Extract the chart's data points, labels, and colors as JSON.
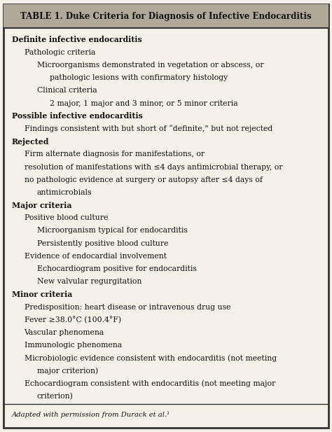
{
  "title": "TABLE 1. Duke Criteria for Diagnosis of Infective Endocarditis",
  "title_fontsize": 8.5,
  "bg_color": "#f5f0e8",
  "header_bg": "#b0a898",
  "border_color": "#333333",
  "footer_text": "Adapted with permission from Durack et al.¹",
  "lines": [
    {
      "text": "Definite infective endocarditis",
      "indent": 0
    },
    {
      "text": "Pathologic criteria",
      "indent": 1
    },
    {
      "text": "Microorganisms demonstrated in vegetation or abscess, or",
      "indent": 2
    },
    {
      "text": "pathologic lesions with confirmatory histology",
      "indent": 3
    },
    {
      "text": "Clinical criteria",
      "indent": 2
    },
    {
      "text": "2 major, 1 major and 3 minor, or 5 minor criteria",
      "indent": 3
    },
    {
      "text": "Possible infective endocarditis",
      "indent": 0
    },
    {
      "text": "Findings consistent with but short of “definite,” but not rejected",
      "indent": 1
    },
    {
      "text": "Rejected",
      "indent": 0
    },
    {
      "text": "Firm alternate diagnosis for manifestations, or",
      "indent": 1
    },
    {
      "text": "resolution of manifestations with ≤4 days antimicrobial therapy, or",
      "indent": 1
    },
    {
      "text": "no pathologic evidence at surgery or autopsy after ≤4 days of",
      "indent": 1
    },
    {
      "text": "antimicrobials",
      "indent": 2
    },
    {
      "text": "Major criteria",
      "indent": 0
    },
    {
      "text": "Positive blood culture",
      "indent": 1
    },
    {
      "text": "Microorganism typical for endocarditis",
      "indent": 2
    },
    {
      "text": "Persistently positive blood culture",
      "indent": 2
    },
    {
      "text": "Evidence of endocardial involvement",
      "indent": 1
    },
    {
      "text": "Echocardiogram positive for endocarditis",
      "indent": 2
    },
    {
      "text": "New valvular regurgitation",
      "indent": 2
    },
    {
      "text": "Minor criteria",
      "indent": 0
    },
    {
      "text": "Predisposition: heart disease or intravenous drug use",
      "indent": 1
    },
    {
      "text": "Fever ≥38.0°C (100.4°F)",
      "indent": 1
    },
    {
      "text": "Vascular phenomena",
      "indent": 1
    },
    {
      "text": "Immunologic phenomena",
      "indent": 1
    },
    {
      "text": "Microbiologic evidence consistent with endocarditis (not meeting",
      "indent": 1
    },
    {
      "text": "major criterion)",
      "indent": 2
    },
    {
      "text": "Echocardiogram consistent with endocarditis (not meeting major",
      "indent": 1
    },
    {
      "text": "criterion)",
      "indent": 2
    }
  ],
  "bold_items": [
    "Definite infective endocarditis",
    "Possible infective endocarditis",
    "Rejected",
    "Major criteria",
    "Minor criteria"
  ]
}
